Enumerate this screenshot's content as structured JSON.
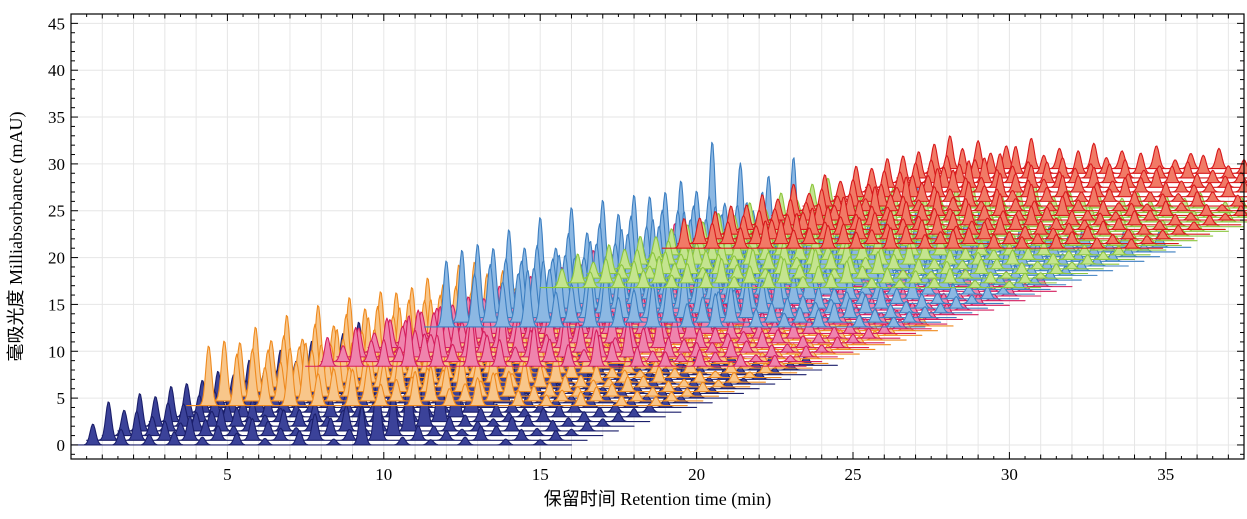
{
  "chart_data": {
    "type": "line",
    "title": "",
    "subtitle": "",
    "xlabel": "保留时间 Retention time (min)",
    "ylabel": "毫吸光度 Milliabsorbance (mAU)",
    "xlim": [
      0,
      37.5
    ],
    "ylim": [
      -1.5,
      46
    ],
    "x_ticks": [
      5,
      10,
      15,
      20,
      25,
      30,
      35
    ],
    "y_ticks": [
      0,
      5,
      10,
      15,
      20,
      25,
      30,
      35,
      40,
      45
    ],
    "grid": true,
    "legend": "none",
    "stacking": "waterfall: each successive trace offset by about +0.5 min in retention time and +0.5 mAU in absorbance",
    "series": [
      {
        "color": "#1b1f6b",
        "fill": "#3b4299",
        "trace_count": 18,
        "base_start": {
          "x": 0,
          "y": 0
        },
        "base_end": {
          "x": 16,
          "y": 0
        },
        "peaks": [
          {
            "x": 0.7,
            "height": 3.2
          },
          {
            "x": 1.6,
            "height": 2.4
          },
          {
            "x": 2.5,
            "height": 1.6
          },
          {
            "x": 3.3,
            "height": 2.0
          },
          {
            "x": 4.2,
            "height": 1.2
          },
          {
            "x": 5.3,
            "height": 1.8
          },
          {
            "x": 6.2,
            "height": 1.0
          },
          {
            "x": 7.3,
            "height": 2.2
          },
          {
            "x": 8.4,
            "height": 0.9
          },
          {
            "x": 9.3,
            "height": 6.0
          },
          {
            "x": 10.6,
            "height": 1.2
          },
          {
            "x": 11.5,
            "height": 0.8
          },
          {
            "x": 12.6,
            "height": 1.2
          },
          {
            "x": 13.9,
            "height": 0.9
          },
          {
            "x": 15.0,
            "height": 0.8
          }
        ]
      },
      {
        "color": "#ef8a1e",
        "fill": "#f8c68a",
        "trace_count": 18,
        "base_start": {
          "x": 3.7,
          "y": 4.2
        },
        "base_end": {
          "x": 19.7,
          "y": 4.2
        },
        "peaks": [
          {
            "x": 0.7,
            "height": 5.6
          },
          {
            "x": 1.6,
            "height": 4.8
          },
          {
            "x": 2.5,
            "height": 3.6
          },
          {
            "x": 3.3,
            "height": 5.4
          },
          {
            "x": 4.2,
            "height": 3.0
          },
          {
            "x": 5.3,
            "height": 3.4
          },
          {
            "x": 6.2,
            "height": 2.0
          },
          {
            "x": 7.3,
            "height": 3.2
          },
          {
            "x": 8.4,
            "height": 1.6
          },
          {
            "x": 9.3,
            "height": 2.6
          },
          {
            "x": 10.6,
            "height": 1.4
          },
          {
            "x": 11.5,
            "height": 1.0
          },
          {
            "x": 12.6,
            "height": 1.3
          },
          {
            "x": 13.9,
            "height": 0.9
          },
          {
            "x": 15.0,
            "height": 0.8
          }
        ]
      },
      {
        "color": "#d41e5e",
        "fill": "#ef84ad",
        "trace_count": 18,
        "base_start": {
          "x": 7.5,
          "y": 8.4
        },
        "base_end": {
          "x": 23.5,
          "y": 8.4
        },
        "peaks": [
          {
            "x": 0.7,
            "height": 2.4
          },
          {
            "x": 1.6,
            "height": 3.2
          },
          {
            "x": 2.5,
            "height": 2.2
          },
          {
            "x": 3.3,
            "height": 4.2
          },
          {
            "x": 4.2,
            "height": 2.6
          },
          {
            "x": 5.3,
            "height": 4.0
          },
          {
            "x": 6.2,
            "height": 2.2
          },
          {
            "x": 7.3,
            "height": 3.4
          },
          {
            "x": 8.4,
            "height": 1.8
          },
          {
            "x": 9.3,
            "height": 3.0
          },
          {
            "x": 10.6,
            "height": 1.6
          },
          {
            "x": 11.5,
            "height": 1.2
          },
          {
            "x": 12.6,
            "height": 1.4
          },
          {
            "x": 13.9,
            "height": 1.0
          },
          {
            "x": 15.0,
            "height": 0.9
          }
        ]
      },
      {
        "color": "#3d7fc1",
        "fill": "#8cb8e3",
        "trace_count": 18,
        "base_start": {
          "x": 11.3,
          "y": 12.6
        },
        "base_end": {
          "x": 27.3,
          "y": 12.6
        },
        "peaks": [
          {
            "x": 0.7,
            "height": 6.8
          },
          {
            "x": 1.6,
            "height": 5.4
          },
          {
            "x": 2.5,
            "height": 4.6
          },
          {
            "x": 3.3,
            "height": 5.8
          },
          {
            "x": 4.2,
            "height": 3.6
          },
          {
            "x": 5.3,
            "height": 5.0
          },
          {
            "x": 6.2,
            "height": 3.0
          },
          {
            "x": 7.3,
            "height": 4.4
          },
          {
            "x": 8.4,
            "height": 2.4
          },
          {
            "x": 9.3,
            "height": 3.4
          },
          {
            "x": 10.6,
            "height": 1.8
          },
          {
            "x": 11.5,
            "height": 1.4
          },
          {
            "x": 12.6,
            "height": 1.8
          },
          {
            "x": 13.9,
            "height": 1.2
          },
          {
            "x": 15.0,
            "height": 1.0
          }
        ]
      },
      {
        "color": "#8cc63e",
        "fill": "#c4e48f",
        "trace_count": 18,
        "base_start": {
          "x": 15.0,
          "y": 16.8
        },
        "base_end": {
          "x": 31.0,
          "y": 16.8
        },
        "peaks": [
          {
            "x": 0.7,
            "height": 2.4
          },
          {
            "x": 1.6,
            "height": 2.0
          },
          {
            "x": 2.5,
            "height": 1.8
          },
          {
            "x": 3.3,
            "height": 2.2
          },
          {
            "x": 4.2,
            "height": 1.6
          },
          {
            "x": 5.3,
            "height": 2.0
          },
          {
            "x": 6.2,
            "height": 1.4
          },
          {
            "x": 7.3,
            "height": 2.0
          },
          {
            "x": 8.4,
            "height": 1.4
          },
          {
            "x": 9.3,
            "height": 1.8
          },
          {
            "x": 10.6,
            "height": 1.2
          },
          {
            "x": 11.5,
            "height": 1.0
          },
          {
            "x": 12.6,
            "height": 1.2
          },
          {
            "x": 13.9,
            "height": 0.9
          },
          {
            "x": 15.0,
            "height": 0.8
          }
        ]
      },
      {
        "color": "#d7191c",
        "fill": "#f17a66",
        "trace_count": 18,
        "base_start": {
          "x": 18.9,
          "y": 21.0
        },
        "base_end": {
          "x": 34.9,
          "y": 21.0
        },
        "peaks": [
          {
            "x": 0.7,
            "height": 2.6
          },
          {
            "x": 1.6,
            "height": 2.2
          },
          {
            "x": 2.5,
            "height": 1.8
          },
          {
            "x": 3.3,
            "height": 2.4
          },
          {
            "x": 4.2,
            "height": 1.6
          },
          {
            "x": 5.3,
            "height": 2.0
          },
          {
            "x": 6.2,
            "height": 1.4
          },
          {
            "x": 7.3,
            "height": 1.8
          },
          {
            "x": 8.4,
            "height": 1.2
          },
          {
            "x": 9.3,
            "height": 1.6
          },
          {
            "x": 10.6,
            "height": 1.2
          },
          {
            "x": 11.5,
            "height": 1.0
          },
          {
            "x": 12.6,
            "height": 1.2
          },
          {
            "x": 13.9,
            "height": 0.9
          },
          {
            "x": 15.0,
            "height": 0.8
          }
        ]
      }
    ]
  }
}
